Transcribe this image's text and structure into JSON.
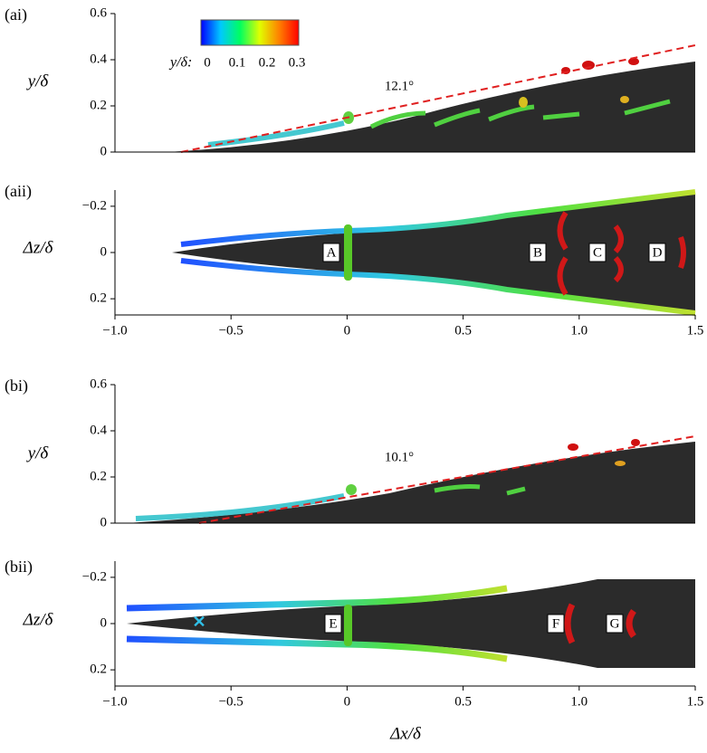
{
  "chart_data": [
    {
      "type": "isosurface",
      "panel_label": "(ai)",
      "ylabel": "y/δ",
      "ylim": [
        0,
        0.6
      ],
      "yticks": [
        0,
        0.2,
        0.4,
        0.6
      ],
      "xlim": [
        -1,
        1.5
      ],
      "annotations": [
        "12.1°"
      ],
      "colorbar": {
        "label": "y/δ:",
        "clim": [
          0,
          0.3
        ],
        "ticks": [
          0,
          0.1,
          0.2,
          0.3
        ],
        "colors": [
          "#0000ff",
          "#00c8ff",
          "#00ff60",
          "#e0ff00",
          "#ff8000",
          "#ff0000"
        ]
      }
    },
    {
      "type": "isosurface",
      "panel_label": "(aii)",
      "ylabel": "Δz/δ",
      "ylim": [
        0.27,
        -0.27
      ],
      "yticks": [
        {
          "value": -0.2,
          "label": "−0.2"
        },
        0,
        0.2
      ],
      "xlim": [
        -1,
        1.5
      ],
      "xticks": [
        {
          "value": -1,
          "label": "−1.0"
        },
        {
          "value": -0.5,
          "label": "−0.5"
        },
        0,
        0.5,
        {
          "value": 1,
          "label": "1.0"
        },
        1.5
      ],
      "annotations": [
        "A",
        "B",
        "C",
        "D"
      ]
    },
    {
      "type": "isosurface",
      "panel_label": "(bi)",
      "ylabel": "y/δ",
      "ylim": [
        0,
        0.6
      ],
      "yticks": [
        0,
        0.2,
        0.4,
        0.6
      ],
      "xlim": [
        -1,
        1.5
      ],
      "annotations": [
        "10.1°"
      ]
    },
    {
      "type": "isosurface",
      "panel_label": "(bii)",
      "ylabel": "Δz/δ",
      "ylim": [
        0.27,
        -0.27
      ],
      "yticks": [
        {
          "value": -0.2,
          "label": "−0.2"
        },
        0,
        0.2
      ],
      "xlim": [
        -1,
        1.5
      ],
      "xticks": [
        {
          "value": -1,
          "label": "−1.0"
        },
        {
          "value": -0.5,
          "label": "−0.5"
        },
        0,
        0.5,
        {
          "value": 1,
          "label": "1.0"
        },
        1.5
      ],
      "xlabel": "Δx/δ",
      "annotations": [
        "E",
        "F",
        "G"
      ]
    }
  ]
}
